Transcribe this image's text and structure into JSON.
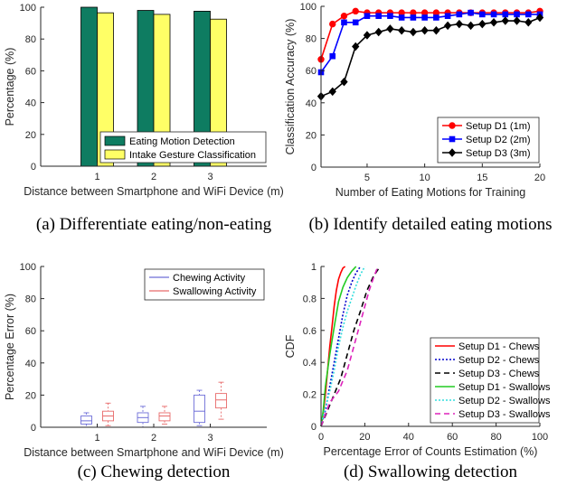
{
  "chart_data": [
    {
      "type": "bar",
      "caption": "(a) Differentiate eating/non-eating",
      "xlabel": "Distance between Smartphone and WiFi Device (m)",
      "ylabel": "Percentage (%)",
      "ylim": [
        0,
        100
      ],
      "yticks": [
        "0",
        "20",
        "40",
        "60",
        "80",
        "100"
      ],
      "categories": [
        "1",
        "2",
        "3"
      ],
      "legend_position": "bottom-right",
      "series": [
        {
          "name": "Eating Motion Detection",
          "color": "#0e7c61",
          "values": [
            100,
            98,
            97.5
          ]
        },
        {
          "name": "Intake Gesture Classification",
          "color": "#ffff66",
          "values": [
            96.5,
            95.5,
            92.5
          ]
        }
      ]
    },
    {
      "type": "line",
      "caption": "(b) Identify detailed eating motions",
      "xlabel": "Number of Eating Motions for Training",
      "ylabel": "Classification Accuracy (%)",
      "xlim": [
        1,
        20
      ],
      "ylim": [
        0,
        100
      ],
      "xticks": [
        "5",
        "10",
        "15",
        "20"
      ],
      "yticks": [
        "0",
        "20",
        "40",
        "60",
        "80",
        "100"
      ],
      "legend_position": "bottom-right",
      "x": [
        1,
        2,
        3,
        4,
        5,
        6,
        7,
        8,
        9,
        10,
        11,
        12,
        13,
        14,
        15,
        16,
        17,
        18,
        19,
        20
      ],
      "series": [
        {
          "name": "Setup D1 (1m)",
          "color": "#ff0000",
          "marker": "circle",
          "values": [
            67,
            89,
            94,
            97,
            96,
            96,
            96,
            96,
            96,
            96,
            96,
            96,
            96,
            96,
            96,
            96,
            96,
            96,
            96,
            97
          ]
        },
        {
          "name": "Setup D2 (2m)",
          "color": "#0000ff",
          "marker": "square",
          "values": [
            59,
            69,
            90,
            90,
            94,
            94,
            94,
            93,
            93,
            93,
            93,
            94,
            95,
            96,
            95,
            95,
            95,
            95,
            95,
            95
          ]
        },
        {
          "name": "Setup D3 (3m)",
          "color": "#000000",
          "marker": "diamond",
          "values": [
            44,
            47,
            53,
            75,
            82,
            84,
            86,
            85,
            84,
            85,
            85,
            88,
            89,
            88,
            89,
            90,
            91,
            91,
            90,
            93
          ]
        }
      ]
    },
    {
      "type": "box",
      "caption": "(c) Chewing detection",
      "xlabel": "Distance between Smartphone and WiFi Device (m)",
      "ylabel": "Percentage Error (%)",
      "ylim": [
        0,
        100
      ],
      "yticks": [
        "0",
        "20",
        "40",
        "60",
        "80",
        "100"
      ],
      "categories": [
        "1",
        "2",
        "3"
      ],
      "legend_position": "top-right",
      "series": [
        {
          "name": "Chewing Activity",
          "color": "#6e6ed8",
          "boxes": [
            {
              "min": 0,
              "q1": 2,
              "median": 4,
              "q3": 7,
              "max": 9
            },
            {
              "min": 0,
              "q1": 3,
              "median": 6,
              "q3": 9,
              "max": 13
            },
            {
              "min": 1,
              "q1": 3,
              "median": 10,
              "q3": 20,
              "max": 23
            }
          ]
        },
        {
          "name": "Swallowing Activity",
          "color": "#e86a6a",
          "boxes": [
            {
              "min": 1,
              "q1": 4,
              "median": 7,
              "q3": 10,
              "max": 15
            },
            {
              "min": 2,
              "q1": 4,
              "median": 7,
              "q3": 9,
              "max": 13
            },
            {
              "min": 5,
              "q1": 12,
              "median": 17,
              "q3": 21,
              "max": 28
            }
          ]
        }
      ]
    },
    {
      "type": "line",
      "caption": "(d) Swallowing detection",
      "xlabel": "Percentage Error of Counts Estimation (%)",
      "ylabel": "CDF",
      "xlim": [
        0,
        100
      ],
      "ylim": [
        0,
        1
      ],
      "xticks": [
        "0",
        "20",
        "40",
        "60",
        "80",
        "100"
      ],
      "yticks": [
        "0",
        "0.2",
        "0.4",
        "0.6",
        "0.8",
        "1"
      ],
      "legend_position": "bottom-right",
      "series": [
        {
          "name": "Setup D1 - Chews",
          "color": "#ff0000",
          "dash": "",
          "x": [
            0,
            1,
            2,
            3,
            4,
            5,
            6,
            7,
            8,
            9,
            10,
            11
          ],
          "values": [
            0,
            0.08,
            0.2,
            0.35,
            0.5,
            0.62,
            0.75,
            0.85,
            0.92,
            0.96,
            0.99,
            1
          ]
        },
        {
          "name": "Setup D2 - Chews",
          "color": "#0000cc",
          "dash": "2,2",
          "x": [
            0,
            2,
            4,
            6,
            8,
            10,
            12,
            14,
            16,
            18
          ],
          "values": [
            0,
            0.1,
            0.25,
            0.4,
            0.55,
            0.7,
            0.82,
            0.9,
            0.96,
            1
          ]
        },
        {
          "name": "Setup D3 - Chews",
          "color": "#000000",
          "dash": "6,4",
          "x": [
            0,
            3,
            6,
            9,
            12,
            15,
            18,
            21,
            24,
            27
          ],
          "values": [
            0,
            0.1,
            0.2,
            0.3,
            0.45,
            0.6,
            0.72,
            0.85,
            0.94,
            1
          ]
        },
        {
          "name": "Setup D1 - Swallows",
          "color": "#22cc22",
          "dash": "",
          "x": [
            0,
            1,
            2,
            4,
            6,
            8,
            10,
            12,
            14,
            16
          ],
          "values": [
            0,
            0.1,
            0.25,
            0.45,
            0.62,
            0.78,
            0.87,
            0.93,
            0.97,
            1
          ]
        },
        {
          "name": "Setup D2 - Swallows",
          "color": "#33dddd",
          "dash": "2,2",
          "x": [
            0,
            2,
            4,
            6,
            8,
            10,
            12,
            14,
            16,
            18,
            20
          ],
          "values": [
            0,
            0.12,
            0.22,
            0.35,
            0.5,
            0.62,
            0.72,
            0.8,
            0.88,
            0.95,
            1
          ]
        },
        {
          "name": "Setup D3 - Swallows",
          "color": "#dd22bb",
          "dash": "6,4",
          "x": [
            0,
            4,
            8,
            12,
            14,
            16,
            18,
            20,
            22,
            24,
            26
          ],
          "values": [
            0,
            0.15,
            0.22,
            0.35,
            0.45,
            0.55,
            0.65,
            0.75,
            0.85,
            0.93,
            1
          ]
        }
      ]
    }
  ]
}
